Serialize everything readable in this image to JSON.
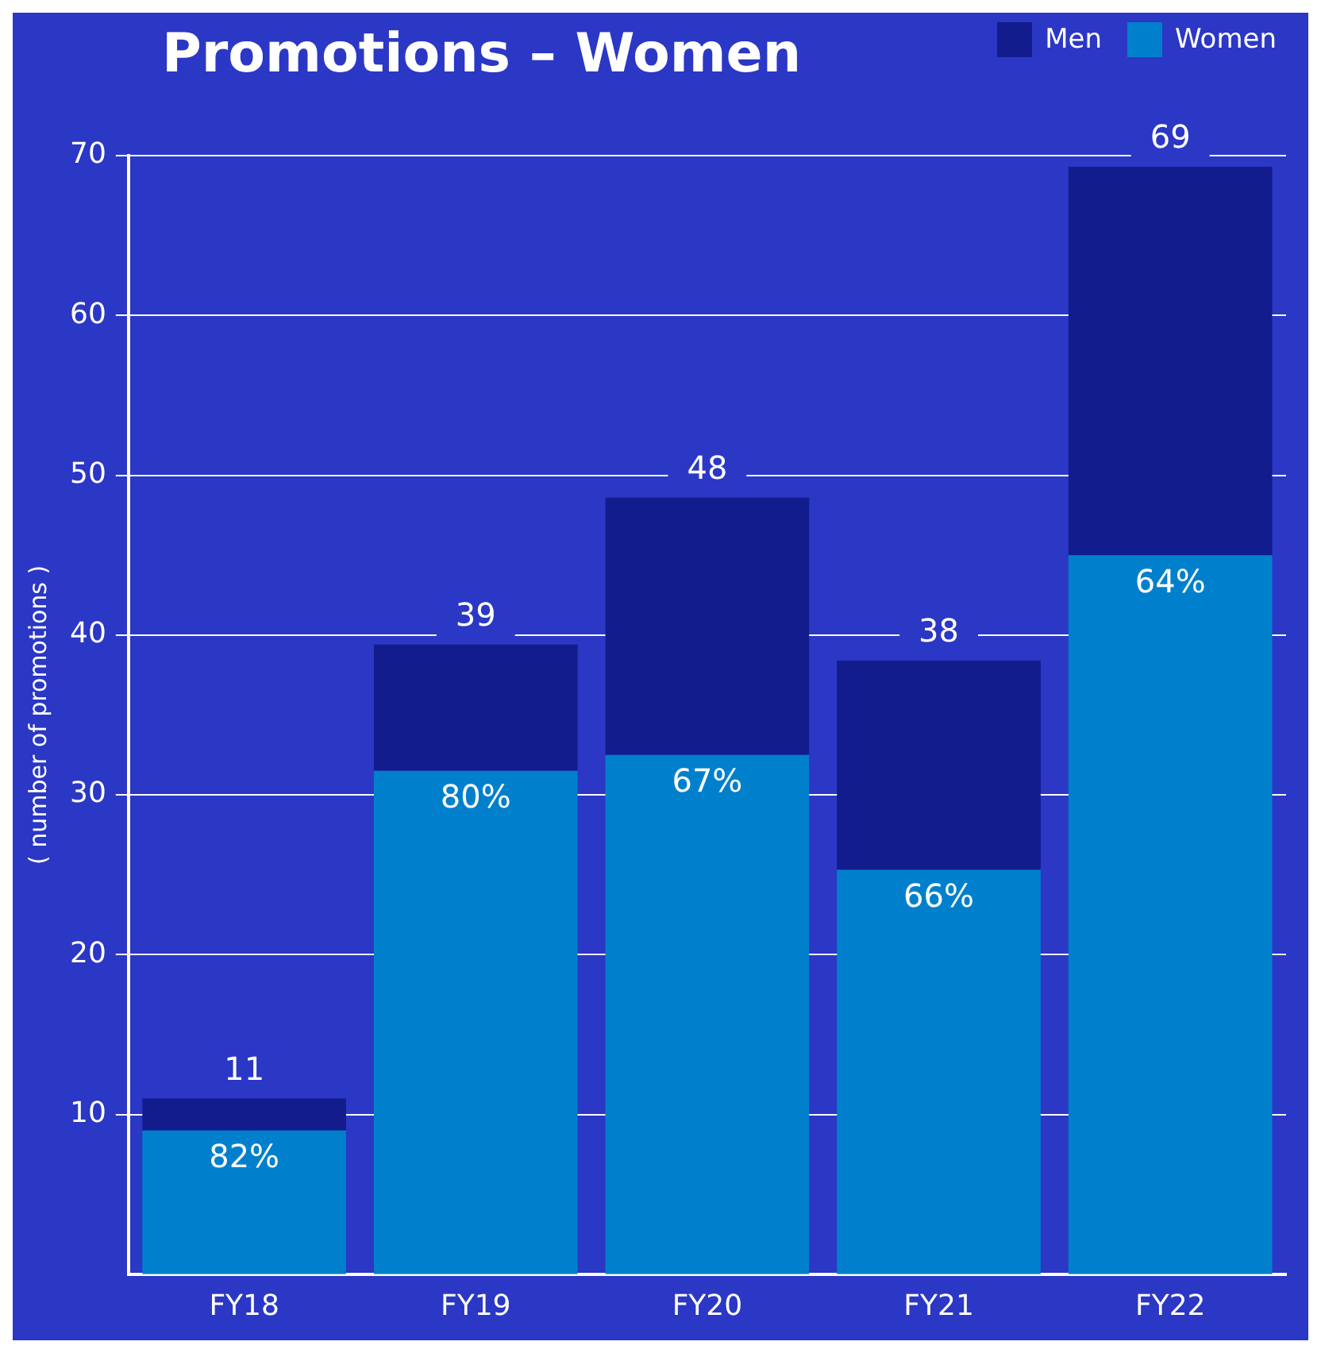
{
  "chart_data": {
    "type": "bar",
    "title": "Promotions – Women",
    "ylabel": "( number of promotions )",
    "categories": [
      "FY18",
      "FY19",
      "FY20",
      "FY21",
      "FY22"
    ],
    "stacked": true,
    "series": [
      {
        "name": "Women",
        "color": "#0080cc",
        "values": [
          9,
          31.5,
          32.5,
          25.3,
          45
        ]
      },
      {
        "name": "Men",
        "color": "#131c8c",
        "values": [
          2,
          7.9,
          16.1,
          13.1,
          24.3
        ]
      }
    ],
    "annotations": [
      {
        "text": "82%",
        "x": "FY18",
        "y": 9
      },
      {
        "text": "80%",
        "x": "FY19",
        "y": 31.5
      },
      {
        "text": "67%",
        "x": "FY20",
        "y": 32.5
      },
      {
        "text": "66%",
        "x": "FY21",
        "y": 25.3
      },
      {
        "text": "64%",
        "x": "FY22",
        "y": 45
      }
    ],
    "totals": [
      "11",
      "39",
      "48",
      "38",
      "69"
    ],
    "ylim": [
      0,
      70
    ],
    "yticks": [
      10,
      20,
      30,
      40,
      50,
      60,
      70
    ],
    "grid": "y",
    "legend": "top right"
  }
}
